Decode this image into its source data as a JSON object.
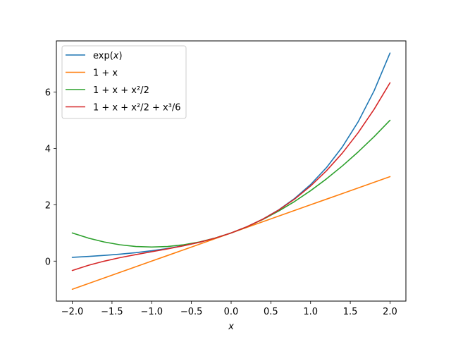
{
  "chart_data": {
    "type": "line",
    "title": "",
    "xlabel": "x",
    "ylabel": "",
    "xlim": [
      -2.2,
      2.2
    ],
    "ylim": [
      -1.42,
      7.82
    ],
    "grid": false,
    "legend_position": "top-left",
    "x_ticks": [
      -2.0,
      -1.5,
      -1.0,
      -0.5,
      0.0,
      0.5,
      1.0,
      1.5,
      2.0
    ],
    "x_tick_labels": [
      "−2.0",
      "−1.5",
      "−1.0",
      "−0.5",
      "0.0",
      "0.5",
      "1.0",
      "1.5",
      "2.0"
    ],
    "y_ticks": [
      0,
      2,
      4,
      6
    ],
    "y_tick_labels": [
      "0",
      "2",
      "4",
      "6"
    ],
    "x": [
      -2.0,
      -1.8,
      -1.6,
      -1.4,
      -1.2,
      -1.0,
      -0.8,
      -0.6,
      -0.4,
      -0.2,
      0.0,
      0.2,
      0.4,
      0.6,
      0.8,
      1.0,
      1.2,
      1.4,
      1.6,
      1.8,
      2.0
    ],
    "series": [
      {
        "name": "exp(x)",
        "color": "#1f77b4",
        "values": [
          0.135,
          0.165,
          0.202,
          0.247,
          0.301,
          0.368,
          0.449,
          0.549,
          0.67,
          0.819,
          1.0,
          1.221,
          1.492,
          1.822,
          2.226,
          2.718,
          3.32,
          4.055,
          4.953,
          6.05,
          7.389
        ]
      },
      {
        "name": "1 + x",
        "color": "#ff7f0e",
        "values": [
          -1.0,
          -0.8,
          -0.6,
          -0.4,
          -0.2,
          0.0,
          0.2,
          0.4,
          0.6,
          0.8,
          1.0,
          1.2,
          1.4,
          1.6,
          1.8,
          2.0,
          2.2,
          2.4,
          2.6,
          2.8,
          3.0
        ]
      },
      {
        "name": "1 + x + x²/2",
        "color": "#2ca02c",
        "values": [
          1.0,
          0.82,
          0.68,
          0.58,
          0.52,
          0.5,
          0.52,
          0.58,
          0.68,
          0.82,
          1.0,
          1.22,
          1.48,
          1.78,
          2.12,
          2.5,
          2.92,
          3.38,
          3.88,
          4.42,
          5.0
        ]
      },
      {
        "name": "1 + x + x²/2 + x³/6",
        "color": "#d62728",
        "values": [
          -0.333,
          -0.152,
          -0.003,
          0.123,
          0.232,
          0.333,
          0.435,
          0.544,
          0.669,
          0.819,
          1.0,
          1.221,
          1.491,
          1.816,
          2.205,
          2.667,
          3.208,
          3.837,
          4.563,
          5.392,
          6.333
        ]
      }
    ]
  },
  "legend": {
    "entries": [
      {
        "prefix": "exp(",
        "italic": "x",
        "suffix": ")"
      },
      {
        "text": "1 + x"
      },
      {
        "text": "1 + x + x²/2"
      },
      {
        "text": "1 + x + x²/2 + x³/6"
      }
    ]
  }
}
